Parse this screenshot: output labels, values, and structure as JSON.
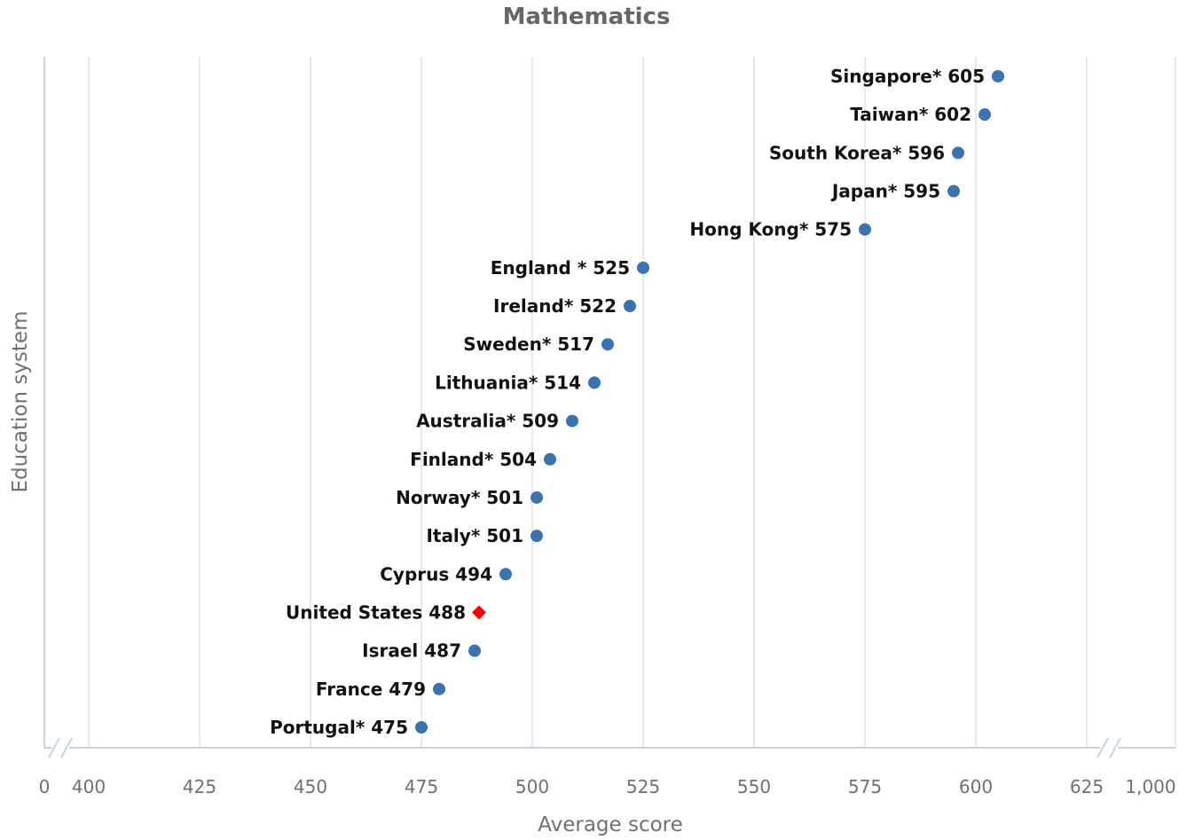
{
  "chart_data": {
    "type": "scatter",
    "title": "Mathematics",
    "xlabel": "Average score",
    "ylabel": "Education system",
    "x_axis": {
      "ticks": [
        400,
        425,
        450,
        475,
        500,
        525,
        550,
        575,
        600,
        625
      ],
      "tick_labels": [
        "400",
        "425",
        "450",
        "475",
        "500",
        "525",
        "550",
        "575",
        "600",
        "625"
      ],
      "break_start_label": "0",
      "break_end_label": "1,000",
      "range": [
        400,
        625
      ],
      "axis_breaks": true
    },
    "grid": true,
    "colors": {
      "default": "#3a73b0",
      "highlight": "#ff0000"
    },
    "points": [
      {
        "label": "Singapore* 605",
        "value": 605,
        "highlight": false
      },
      {
        "label": "Taiwan* 602",
        "value": 602,
        "highlight": false
      },
      {
        "label": "South Korea* 596",
        "value": 596,
        "highlight": false
      },
      {
        "label": "Japan* 595",
        "value": 595,
        "highlight": false
      },
      {
        "label": "Hong Kong* 575",
        "value": 575,
        "highlight": false
      },
      {
        "label": "England * 525",
        "value": 525,
        "highlight": false
      },
      {
        "label": "Ireland* 522",
        "value": 522,
        "highlight": false
      },
      {
        "label": "Sweden* 517",
        "value": 517,
        "highlight": false
      },
      {
        "label": "Lithuania* 514",
        "value": 514,
        "highlight": false
      },
      {
        "label": "Australia* 509",
        "value": 509,
        "highlight": false
      },
      {
        "label": "Finland* 504",
        "value": 504,
        "highlight": false
      },
      {
        "label": "Norway* 501",
        "value": 501,
        "highlight": false
      },
      {
        "label": "Italy* 501",
        "value": 501,
        "highlight": false
      },
      {
        "label": "Cyprus 494",
        "value": 494,
        "highlight": false
      },
      {
        "label": "United States 488",
        "value": 488,
        "highlight": true
      },
      {
        "label": "Israel 487",
        "value": 487,
        "highlight": false
      },
      {
        "label": "France 479",
        "value": 479,
        "highlight": false
      },
      {
        "label": "Portugal* 475",
        "value": 475,
        "highlight": false
      }
    ]
  }
}
